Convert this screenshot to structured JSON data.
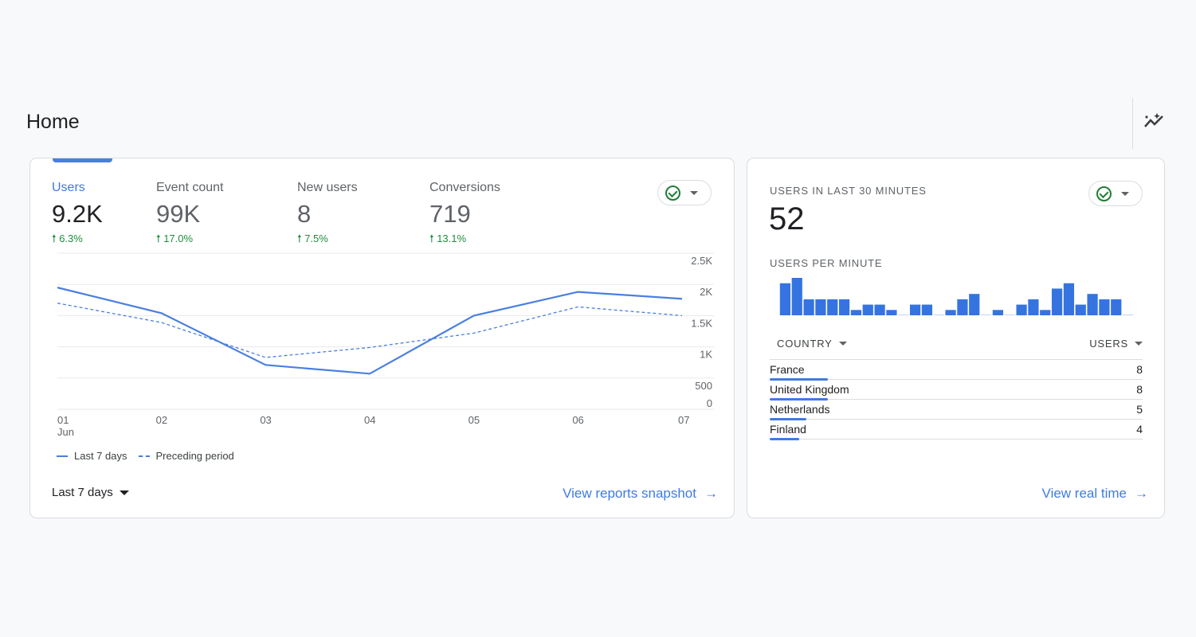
{
  "page": {
    "title": "Home",
    "insights_icon": "insights-sparkle-icon"
  },
  "overview": {
    "metrics": [
      {
        "label": "Users",
        "value": "9.2K",
        "change": "6.3%",
        "active": true
      },
      {
        "label": "Event count",
        "value": "99K",
        "change": "17.0%"
      },
      {
        "label": "New users",
        "value": "8",
        "change": "7.5%"
      },
      {
        "label": "Conversions",
        "value": "719",
        "change": "13.1%"
      }
    ],
    "date_range": "Last 7 days",
    "link": "View reports snapshot",
    "accent": "#4a7fe0",
    "change_color": "#1e8e3e"
  },
  "chart_data": {
    "type": "line",
    "categories": [
      "01",
      "02",
      "03",
      "04",
      "05",
      "06",
      "07"
    ],
    "x_sublabel": "Jun",
    "series": [
      {
        "name": "Last 7 days",
        "style": "solid",
        "values": [
          1950,
          1540,
          710,
          570,
          1500,
          1880,
          1770
        ]
      },
      {
        "name": "Preceding period",
        "style": "dashed",
        "values": [
          1700,
          1390,
          830,
          990,
          1220,
          1640,
          1500
        ]
      }
    ],
    "yticks": [
      "0",
      "500",
      "1K",
      "1.5K",
      "2K",
      "2.5K"
    ],
    "ylim": [
      0,
      2500
    ],
    "grid": true,
    "y_axis_side": "right",
    "legend_position": "bottom-left"
  },
  "realtime": {
    "title": "USERS IN LAST 30 MINUTES",
    "value": "52",
    "per_minute_label": "USERS PER MINUTE",
    "per_minute": [
      6,
      7,
      3,
      3,
      3,
      3,
      1,
      2,
      2,
      1,
      0,
      2,
      2,
      0,
      1,
      3,
      4,
      0,
      1,
      0,
      2,
      3,
      1,
      5,
      6,
      2,
      4,
      3,
      3,
      0
    ],
    "col_country": "COUNTRY",
    "col_users": "USERS",
    "rows": [
      {
        "country": "France",
        "users": "8",
        "share": 1.0
      },
      {
        "country": "United Kingdom",
        "users": "8",
        "share": 1.0
      },
      {
        "country": "Netherlands",
        "users": "5",
        "share": 0.63
      },
      {
        "country": "Finland",
        "users": "4",
        "share": 0.5
      }
    ],
    "link": "View real time"
  }
}
